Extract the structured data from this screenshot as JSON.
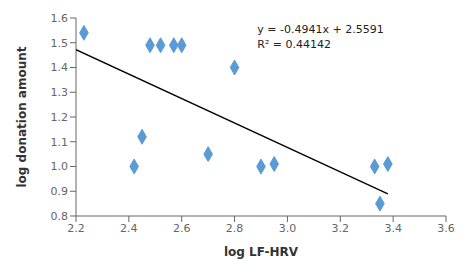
{
  "chart_data": {
    "type": "scatter",
    "xlabel": "log LF-HRV",
    "ylabel": "log donation amount",
    "xlim": [
      2.2,
      3.6
    ],
    "ylim": [
      0.8,
      1.6
    ],
    "xticks": [
      2.2,
      2.4,
      2.6,
      2.8,
      {
        "value": 3,
        "label": "3.0"
      },
      3.2,
      3.4,
      3.6
    ],
    "yticks": [
      0.8,
      0.9,
      {
        "value": 1,
        "label": "1.0"
      },
      1.1,
      1.2,
      1.3,
      1.4,
      1.5,
      1.6
    ],
    "grid": false,
    "annotations": [
      "y = -0.4941x + 2.5591",
      "R² = 0.44142"
    ],
    "series": [
      {
        "type": "scatter",
        "marker": "diamond",
        "color": "#5B9BD5",
        "x": [
          2.23,
          2.42,
          2.45,
          2.48,
          2.52,
          2.57,
          2.6,
          2.7,
          2.8,
          2.9,
          2.95,
          3.33,
          3.35,
          3.38
        ],
        "values": [
          1.54,
          1.0,
          1.12,
          1.49,
          1.49,
          1.49,
          1.49,
          1.05,
          1.4,
          1.0,
          1.01,
          1.0,
          0.85,
          1.01
        ]
      },
      {
        "type": "line",
        "color": "black",
        "x": [
          2.2,
          3.38
        ],
        "values": [
          1.47208,
          0.889042
        ]
      }
    ]
  }
}
